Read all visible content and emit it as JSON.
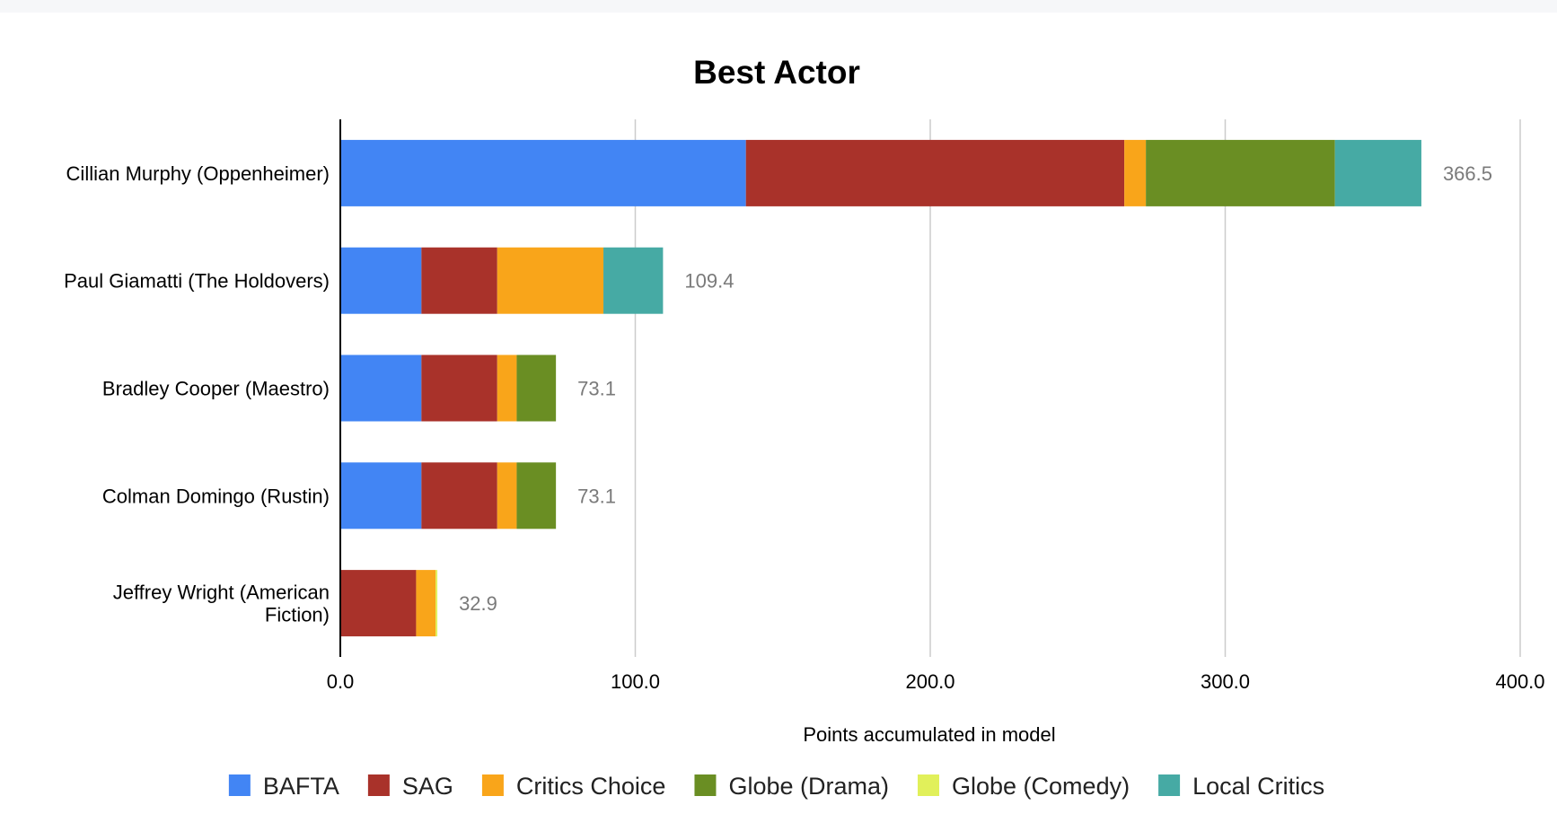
{
  "chart_data": {
    "type": "bar",
    "orientation": "horizontal",
    "stacked": true,
    "title": "Best Actor",
    "xlabel": "Points accumulated in model",
    "ylabel": "",
    "xlim": [
      0,
      400
    ],
    "x_ticks": [
      "0.0",
      "100.0",
      "200.0",
      "300.0",
      "400.0"
    ],
    "grid": true,
    "legend_position": "bottom",
    "categories": [
      [
        "Cillian Murphy (Oppenheimer)"
      ],
      [
        "Paul Giamatti (The Holdovers)"
      ],
      [
        "Bradley Cooper (Maestro)"
      ],
      [
        "Colman Domingo (Rustin)"
      ],
      [
        "Jeffrey Wright (American",
        "Fiction)"
      ]
    ],
    "series": [
      {
        "name": "BAFTA",
        "color": "#4285f4",
        "values": [
          137.5,
          27.5,
          27.5,
          27.5,
          0
        ]
      },
      {
        "name": "SAG",
        "color": "#a9322a",
        "values": [
          128.3,
          25.7,
          25.7,
          25.7,
          25.7
        ]
      },
      {
        "name": "Critics Choice",
        "color": "#f9a51a",
        "values": [
          7.3,
          36.0,
          6.6,
          6.6,
          6.6
        ]
      },
      {
        "name": "Globe (Drama)",
        "color": "#6a8e23",
        "values": [
          64.1,
          0,
          13.3,
          13.3,
          0
        ]
      },
      {
        "name": "Globe (Comedy)",
        "color": "#e1f05a",
        "values": [
          0,
          0,
          0,
          0,
          0.6
        ]
      },
      {
        "name": "Local Critics",
        "color": "#46aaa4",
        "values": [
          29.3,
          20.2,
          0,
          0,
          0
        ]
      }
    ],
    "totals": [
      "366.5",
      "109.4",
      "73.1",
      "73.1",
      "32.9"
    ]
  }
}
